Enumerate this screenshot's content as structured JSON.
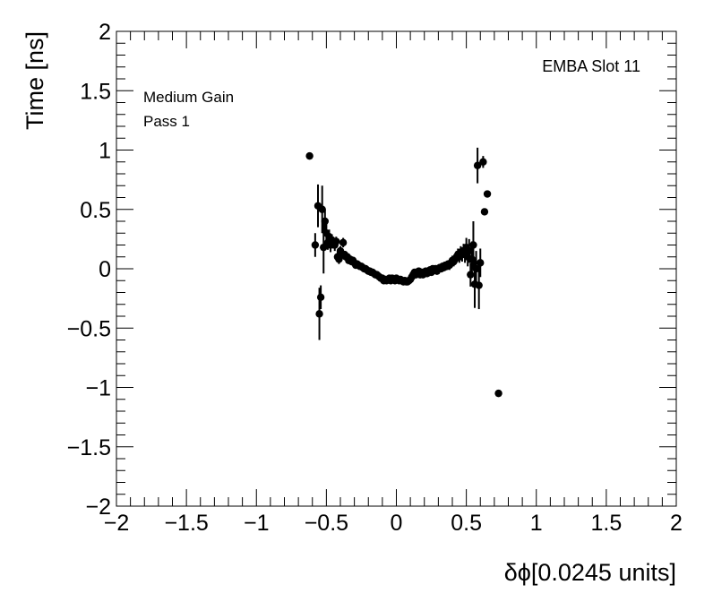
{
  "chart_data": {
    "type": "scatter",
    "xlabel": "δϕ[0.0245 units]",
    "ylabel": "Time [ns]",
    "xlim": [
      -2,
      2
    ],
    "ylim": [
      -2,
      2
    ],
    "xticks": [
      -2,
      -1.5,
      -1,
      -0.5,
      0,
      0.5,
      1,
      1.5,
      2
    ],
    "yticks": [
      -2,
      -1.5,
      -1,
      -0.5,
      0,
      0.5,
      1,
      1.5,
      2
    ],
    "xtick_labels": [
      "−2",
      "−1.5",
      "−1",
      "−0.5",
      "0",
      "0.5",
      "1",
      "1.5",
      "2"
    ],
    "ytick_labels": [
      "−2",
      "−1.5",
      "−1",
      "−0.5",
      "0",
      "0.5",
      "1",
      "1.5",
      "2"
    ],
    "annotations": {
      "gain": "Medium Gain",
      "pass": "Pass 1",
      "module": "EMBA Slot 11"
    },
    "grid": false,
    "points": [
      {
        "x": -0.62,
        "y": 0.95,
        "err": 0
      },
      {
        "x": -0.58,
        "y": 0.2,
        "err": 0.1
      },
      {
        "x": -0.56,
        "y": 0.53,
        "err": 0.18
      },
      {
        "x": -0.55,
        "y": -0.38,
        "err": 0.22
      },
      {
        "x": -0.54,
        "y": -0.24,
        "err": 0.1
      },
      {
        "x": -0.53,
        "y": 0.5,
        "err": 0.2
      },
      {
        "x": -0.52,
        "y": 0.18,
        "err": 0.22
      },
      {
        "x": -0.51,
        "y": 0.4,
        "err": 0.1
      },
      {
        "x": -0.5,
        "y": 0.3,
        "err": 0.08
      },
      {
        "x": -0.49,
        "y": 0.22,
        "err": 0.06
      },
      {
        "x": -0.48,
        "y": 0.27,
        "err": 0.06
      },
      {
        "x": -0.47,
        "y": 0.2,
        "err": 0.06
      },
      {
        "x": -0.46,
        "y": 0.24,
        "err": 0.05
      },
      {
        "x": -0.45,
        "y": 0.22,
        "err": 0.05
      },
      {
        "x": -0.44,
        "y": 0.2,
        "err": 0.05
      },
      {
        "x": -0.43,
        "y": 0.23,
        "err": 0.04
      },
      {
        "x": -0.42,
        "y": 0.1,
        "err": 0.04
      },
      {
        "x": -0.41,
        "y": 0.08,
        "err": 0.04
      },
      {
        "x": -0.4,
        "y": 0.15,
        "err": 0.04
      },
      {
        "x": -0.39,
        "y": 0.12,
        "err": 0.04
      },
      {
        "x": -0.38,
        "y": 0.22,
        "err": 0.04
      },
      {
        "x": -0.37,
        "y": 0.12,
        "err": 0.03
      },
      {
        "x": -0.36,
        "y": 0.1,
        "err": 0.03
      },
      {
        "x": -0.35,
        "y": 0.1,
        "err": 0.03
      },
      {
        "x": -0.34,
        "y": 0.07,
        "err": 0.03
      },
      {
        "x": -0.33,
        "y": 0.08,
        "err": 0.03
      },
      {
        "x": -0.32,
        "y": 0.06,
        "err": 0.03
      },
      {
        "x": -0.31,
        "y": 0.07,
        "err": 0.03
      },
      {
        "x": -0.3,
        "y": 0.05,
        "err": 0.03
      },
      {
        "x": -0.29,
        "y": 0.03,
        "err": 0.03
      },
      {
        "x": -0.28,
        "y": 0.04,
        "err": 0.03
      },
      {
        "x": -0.27,
        "y": 0.03,
        "err": 0.03
      },
      {
        "x": -0.26,
        "y": 0.02,
        "err": 0.03
      },
      {
        "x": -0.25,
        "y": 0.02,
        "err": 0.03
      },
      {
        "x": -0.24,
        "y": 0.01,
        "err": 0.03
      },
      {
        "x": -0.23,
        "y": 0.0,
        "err": 0.03
      },
      {
        "x": -0.22,
        "y": 0.0,
        "err": 0.03
      },
      {
        "x": -0.21,
        "y": -0.01,
        "err": 0.03
      },
      {
        "x": -0.2,
        "y": -0.02,
        "err": 0.03
      },
      {
        "x": -0.19,
        "y": -0.02,
        "err": 0.03
      },
      {
        "x": -0.18,
        "y": -0.03,
        "err": 0.03
      },
      {
        "x": -0.17,
        "y": -0.03,
        "err": 0.03
      },
      {
        "x": -0.16,
        "y": -0.04,
        "err": 0.03
      },
      {
        "x": -0.15,
        "y": -0.05,
        "err": 0.03
      },
      {
        "x": -0.14,
        "y": -0.05,
        "err": 0.03
      },
      {
        "x": -0.13,
        "y": -0.06,
        "err": 0.03
      },
      {
        "x": -0.12,
        "y": -0.07,
        "err": 0.03
      },
      {
        "x": -0.11,
        "y": -0.08,
        "err": 0.03
      },
      {
        "x": -0.1,
        "y": -0.08,
        "err": 0.03
      },
      {
        "x": -0.09,
        "y": -0.1,
        "err": 0.03
      },
      {
        "x": -0.08,
        "y": -0.09,
        "err": 0.03
      },
      {
        "x": -0.07,
        "y": -0.1,
        "err": 0.03
      },
      {
        "x": -0.06,
        "y": -0.09,
        "err": 0.03
      },
      {
        "x": -0.05,
        "y": -0.08,
        "err": 0.03
      },
      {
        "x": -0.04,
        "y": -0.1,
        "err": 0.03
      },
      {
        "x": -0.03,
        "y": -0.08,
        "err": 0.03
      },
      {
        "x": -0.02,
        "y": -0.09,
        "err": 0.03
      },
      {
        "x": -0.01,
        "y": -0.1,
        "err": 0.03
      },
      {
        "x": 0.0,
        "y": -0.08,
        "err": 0.03
      },
      {
        "x": 0.01,
        "y": -0.09,
        "err": 0.03
      },
      {
        "x": 0.02,
        "y": -0.1,
        "err": 0.03
      },
      {
        "x": 0.03,
        "y": -0.09,
        "err": 0.03
      },
      {
        "x": 0.04,
        "y": -0.1,
        "err": 0.03
      },
      {
        "x": 0.05,
        "y": -0.11,
        "err": 0.03
      },
      {
        "x": 0.06,
        "y": -0.1,
        "err": 0.03
      },
      {
        "x": 0.07,
        "y": -0.11,
        "err": 0.03
      },
      {
        "x": 0.08,
        "y": -0.11,
        "err": 0.03
      },
      {
        "x": 0.09,
        "y": -0.1,
        "err": 0.03
      },
      {
        "x": 0.1,
        "y": -0.09,
        "err": 0.03
      },
      {
        "x": 0.11,
        "y": -0.07,
        "err": 0.03
      },
      {
        "x": 0.12,
        "y": -0.05,
        "err": 0.03
      },
      {
        "x": 0.13,
        "y": -0.03,
        "err": 0.03
      },
      {
        "x": 0.14,
        "y": -0.05,
        "err": 0.03
      },
      {
        "x": 0.15,
        "y": -0.04,
        "err": 0.03
      },
      {
        "x": 0.16,
        "y": -0.02,
        "err": 0.03
      },
      {
        "x": 0.17,
        "y": -0.05,
        "err": 0.03
      },
      {
        "x": 0.18,
        "y": -0.03,
        "err": 0.03
      },
      {
        "x": 0.19,
        "y": -0.05,
        "err": 0.03
      },
      {
        "x": 0.2,
        "y": -0.03,
        "err": 0.03
      },
      {
        "x": 0.21,
        "y": -0.02,
        "err": 0.03
      },
      {
        "x": 0.22,
        "y": -0.04,
        "err": 0.03
      },
      {
        "x": 0.23,
        "y": -0.02,
        "err": 0.03
      },
      {
        "x": 0.24,
        "y": -0.01,
        "err": 0.03
      },
      {
        "x": 0.25,
        "y": -0.03,
        "err": 0.03
      },
      {
        "x": 0.26,
        "y": 0.0,
        "err": 0.03
      },
      {
        "x": 0.27,
        "y": -0.01,
        "err": 0.03
      },
      {
        "x": 0.28,
        "y": 0.0,
        "err": 0.03
      },
      {
        "x": 0.29,
        "y": -0.02,
        "err": 0.03
      },
      {
        "x": 0.3,
        "y": 0.0,
        "err": 0.03
      },
      {
        "x": 0.31,
        "y": 0.01,
        "err": 0.03
      },
      {
        "x": 0.32,
        "y": 0.0,
        "err": 0.03
      },
      {
        "x": 0.33,
        "y": 0.02,
        "err": 0.03
      },
      {
        "x": 0.34,
        "y": 0.01,
        "err": 0.03
      },
      {
        "x": 0.35,
        "y": 0.03,
        "err": 0.03
      },
      {
        "x": 0.36,
        "y": 0.02,
        "err": 0.03
      },
      {
        "x": 0.37,
        "y": 0.04,
        "err": 0.03
      },
      {
        "x": 0.38,
        "y": 0.03,
        "err": 0.04
      },
      {
        "x": 0.39,
        "y": 0.05,
        "err": 0.04
      },
      {
        "x": 0.4,
        "y": 0.07,
        "err": 0.04
      },
      {
        "x": 0.41,
        "y": 0.06,
        "err": 0.04
      },
      {
        "x": 0.42,
        "y": 0.08,
        "err": 0.04
      },
      {
        "x": 0.43,
        "y": 0.1,
        "err": 0.05
      },
      {
        "x": 0.44,
        "y": 0.12,
        "err": 0.05
      },
      {
        "x": 0.45,
        "y": 0.1,
        "err": 0.05
      },
      {
        "x": 0.46,
        "y": 0.14,
        "err": 0.05
      },
      {
        "x": 0.47,
        "y": 0.12,
        "err": 0.06
      },
      {
        "x": 0.48,
        "y": 0.15,
        "err": 0.06
      },
      {
        "x": 0.49,
        "y": 0.12,
        "err": 0.07
      },
      {
        "x": 0.5,
        "y": 0.18,
        "err": 0.08
      },
      {
        "x": 0.51,
        "y": 0.1,
        "err": 0.08
      },
      {
        "x": 0.52,
        "y": 0.15,
        "err": 0.1
      },
      {
        "x": 0.53,
        "y": -0.05,
        "err": 0.1
      },
      {
        "x": 0.54,
        "y": 0.08,
        "err": 0.15
      },
      {
        "x": 0.55,
        "y": 0.2,
        "err": 0.2
      },
      {
        "x": 0.56,
        "y": -0.13,
        "err": 0.2
      },
      {
        "x": 0.57,
        "y": 0.0,
        "err": 0.15
      },
      {
        "x": 0.58,
        "y": 0.87,
        "err": 0.15
      },
      {
        "x": 0.59,
        "y": -0.14,
        "err": 0.2
      },
      {
        "x": 0.6,
        "y": 0.05,
        "err": 0.12
      },
      {
        "x": 0.62,
        "y": 0.9,
        "err": 0.05
      },
      {
        "x": 0.63,
        "y": 0.48,
        "err": 0
      },
      {
        "x": 0.65,
        "y": 0.63,
        "err": 0
      },
      {
        "x": 0.73,
        "y": -1.05,
        "err": 0
      }
    ]
  },
  "style": {
    "frame_color": "#000000",
    "marker_color": "#000000",
    "background": "#ffffff"
  }
}
